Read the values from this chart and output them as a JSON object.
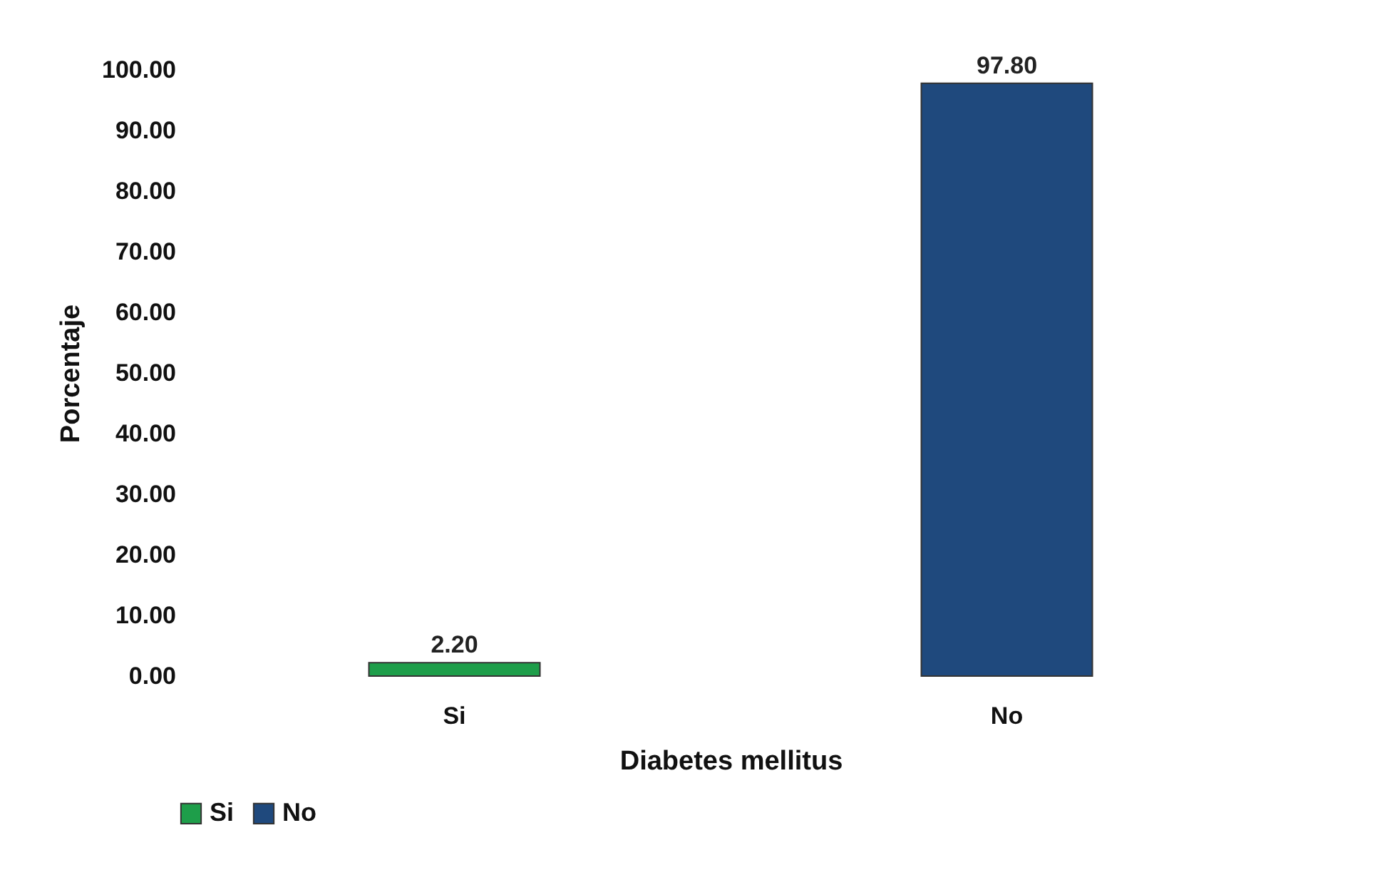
{
  "chart_data": {
    "type": "bar",
    "xlabel": "Diabetes mellitus",
    "ylabel": "Porcentaje",
    "categories": [
      "Si",
      "No"
    ],
    "series": [
      {
        "name": "Si",
        "color": "#1e9e4a",
        "values": [
          2.2,
          null
        ],
        "value_labels": [
          "2.20",
          null
        ]
      },
      {
        "name": "No",
        "color": "#1f497d",
        "values": [
          null,
          97.8
        ],
        "value_labels": [
          null,
          "97.80"
        ]
      }
    ],
    "ylim": [
      0,
      100
    ],
    "yticks": [
      {
        "value": 0,
        "label": "0.00"
      },
      {
        "value": 10,
        "label": "10.00"
      },
      {
        "value": 20,
        "label": "20.00"
      },
      {
        "value": 30,
        "label": "30.00"
      },
      {
        "value": 40,
        "label": "40.00"
      },
      {
        "value": 50,
        "label": "50.00"
      },
      {
        "value": 60,
        "label": "60.00"
      },
      {
        "value": 70,
        "label": "70.00"
      },
      {
        "value": 80,
        "label": "80.00"
      },
      {
        "value": 90,
        "label": "90.00"
      },
      {
        "value": 100,
        "label": "100.00"
      }
    ],
    "grid": false,
    "legend": "bottom"
  }
}
